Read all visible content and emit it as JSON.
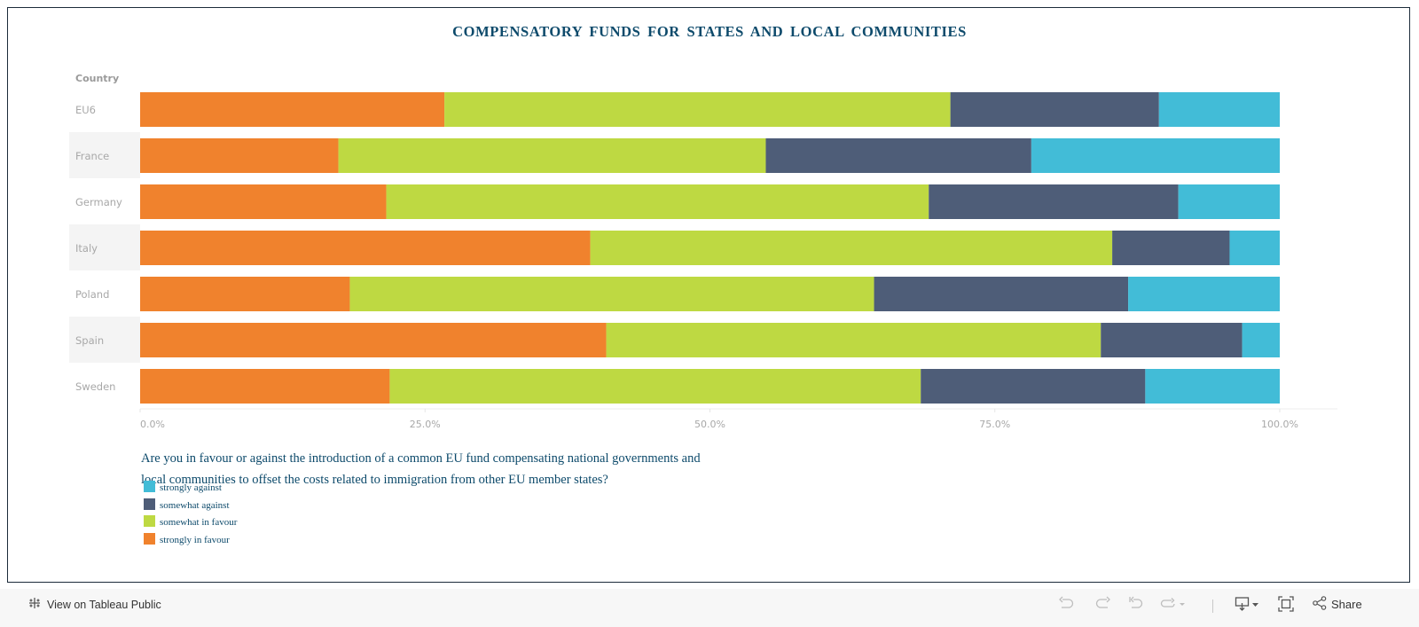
{
  "title": "COMPENSATORY FUNDS FOR STATES AND LOCAL COMMUNITIES",
  "row_header": "Country",
  "question": "Are you in favour or against the introduction of a common EU fund compensating national governments and local communities to offset the costs related to immigration from other EU member states?",
  "legend": [
    {
      "label": "strongly against",
      "color": "#42bcd7"
    },
    {
      "label": "somewhat against",
      "color": "#4e5d78"
    },
    {
      "label": "somewhat in favour",
      "color": "#bed942"
    },
    {
      "label": "strongly in favour",
      "color": "#f0822d"
    }
  ],
  "chart_data": {
    "type": "bar",
    "orientation": "horizontal",
    "stacked": true,
    "title": "COMPENSATORY FUNDS FOR STATES AND LOCAL COMMUNITIES",
    "xlabel": "",
    "ylabel": "Country",
    "xlim": [
      0,
      100
    ],
    "x_ticks": [
      "0.0%",
      "25.0%",
      "50.0%",
      "75.0%",
      "100.0%"
    ],
    "x_tick_values": [
      0,
      25,
      50,
      75,
      100
    ],
    "categories": [
      "EU6",
      "France",
      "Germany",
      "Italy",
      "Poland",
      "Spain",
      "Sweden"
    ],
    "series": [
      {
        "name": "strongly in favour",
        "color": "#f0822d",
        "values": [
          26.7,
          17.4,
          21.6,
          39.5,
          18.4,
          40.9,
          21.9
        ]
      },
      {
        "name": "somewhat in favour",
        "color": "#bed942",
        "values": [
          44.4,
          37.5,
          47.6,
          45.8,
          46.0,
          43.4,
          46.6
        ]
      },
      {
        "name": "somewhat against",
        "color": "#4e5d78",
        "values": [
          18.3,
          23.3,
          21.9,
          10.3,
          22.3,
          12.4,
          19.7
        ]
      },
      {
        "name": "strongly against",
        "color": "#42bcd7",
        "values": [
          10.6,
          21.8,
          8.9,
          4.4,
          13.3,
          3.3,
          11.8
        ]
      }
    ],
    "legend_position": "bottom-left",
    "grid": false
  },
  "toolbar": {
    "view_on_tableau": "View on Tableau Public",
    "share": "Share"
  }
}
